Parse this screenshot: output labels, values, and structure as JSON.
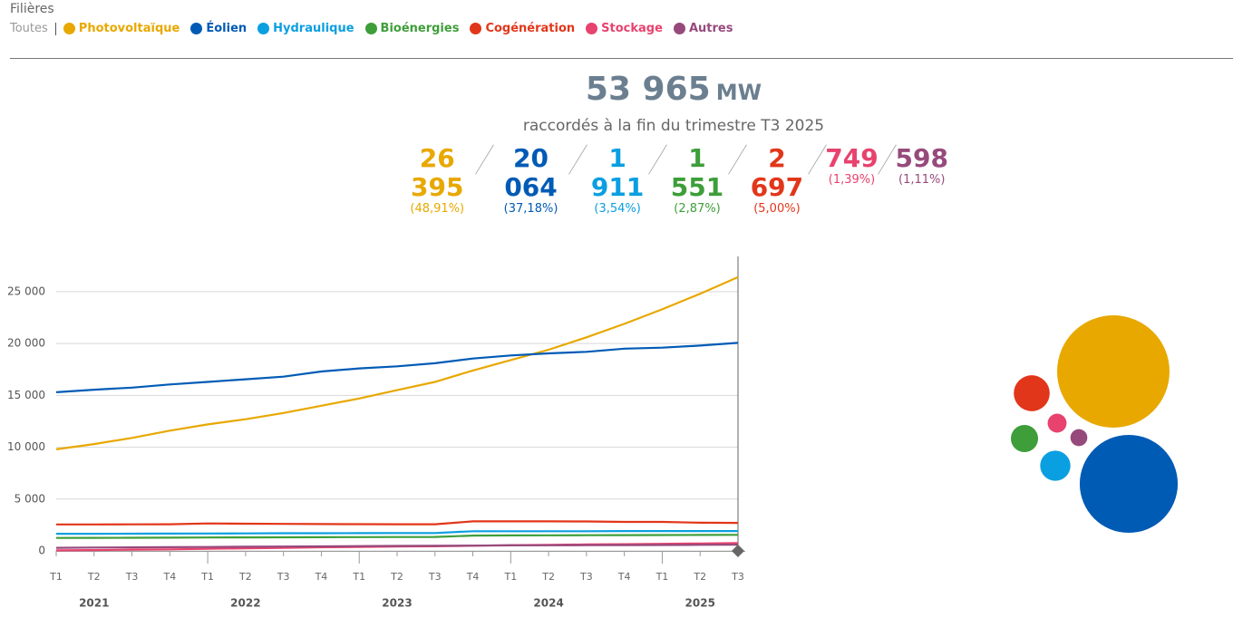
{
  "filter": {
    "label": "Filières",
    "all": "Toutes"
  },
  "summary": {
    "total": "53 965",
    "unit": "MW",
    "caption": "raccordés à la fin du trimestre T3 2025",
    "items": [
      {
        "value": "26 395",
        "share": "(48,91%)"
      },
      {
        "value": "20 064",
        "share": "(37,18%)"
      },
      {
        "value": "1 911",
        "share": "(3,54%)"
      },
      {
        "value": "1 551",
        "share": "(2,87%)"
      },
      {
        "value": "2 697",
        "share": "(5,00%)"
      },
      {
        "value": "749",
        "share": "(1,39%)"
      },
      {
        "value": "598",
        "share": "(1,11%)"
      }
    ]
  },
  "chart_data": [
    {
      "type": "line",
      "categories": [
        "T1",
        "T2",
        "T3",
        "T4",
        "T1",
        "T2",
        "T3",
        "T4",
        "T1",
        "T2",
        "T3",
        "T4",
        "T1",
        "T2",
        "T3",
        "T4",
        "T1",
        "T2",
        "T3"
      ],
      "years": [
        "2021",
        "2022",
        "2023",
        "2024",
        "2025"
      ],
      "ylim": [
        0,
        28400
      ],
      "yticks": [
        {
          "value": 0,
          "label": "0"
        },
        {
          "value": 5000,
          "label": "5 000"
        },
        {
          "value": 10000,
          "label": "10 000"
        },
        {
          "value": 15000,
          "label": "15 000"
        },
        {
          "value": 20000,
          "label": "20 000"
        },
        {
          "value": 25000,
          "label": "25 000"
        }
      ],
      "grid": true,
      "series": [
        {
          "name": "Photovoltaïque",
          "color": "#e8a800",
          "values": [
            9800,
            10300,
            10900,
            11600,
            12200,
            12700,
            13300,
            14000,
            14700,
            15500,
            16300,
            17400,
            18400,
            19400,
            20600,
            21900,
            23300,
            24800,
            26395
          ]
        },
        {
          "name": "Éolien",
          "color": "#005bb5",
          "values": [
            15300,
            15550,
            15750,
            16050,
            16300,
            16550,
            16800,
            17300,
            17600,
            17800,
            18100,
            18550,
            18850,
            19050,
            19200,
            19500,
            19600,
            19800,
            20064
          ]
        },
        {
          "name": "Hydraulique",
          "color": "#0a9fe0",
          "values": [
            1650,
            1650,
            1660,
            1670,
            1680,
            1690,
            1700,
            1700,
            1710,
            1720,
            1720,
            1900,
            1900,
            1900,
            1900,
            1910,
            1910,
            1910,
            1911
          ]
        },
        {
          "name": "Bioénergies",
          "color": "#3e9e3a",
          "values": [
            1250,
            1260,
            1270,
            1280,
            1290,
            1300,
            1310,
            1320,
            1330,
            1340,
            1350,
            1480,
            1490,
            1500,
            1510,
            1520,
            1530,
            1540,
            1551
          ]
        },
        {
          "name": "Cogénération",
          "color": "#e2361a",
          "values": [
            2550,
            2550,
            2560,
            2570,
            2650,
            2620,
            2600,
            2590,
            2580,
            2570,
            2570,
            2850,
            2850,
            2850,
            2840,
            2800,
            2800,
            2720,
            2697
          ]
        },
        {
          "name": "Stockage",
          "color": "#e8426e",
          "values": [
            50,
            80,
            120,
            150,
            200,
            250,
            300,
            350,
            380,
            420,
            450,
            500,
            550,
            580,
            620,
            650,
            680,
            720,
            749
          ]
        },
        {
          "name": "Autres",
          "color": "#964a7c",
          "values": [
            300,
            320,
            340,
            360,
            380,
            400,
            420,
            440,
            460,
            480,
            490,
            510,
            530,
            540,
            550,
            560,
            570,
            585,
            598
          ]
        }
      ]
    },
    {
      "type": "bubble",
      "values": [
        26395,
        20064,
        1911,
        1551,
        2697,
        749,
        598
      ]
    }
  ]
}
